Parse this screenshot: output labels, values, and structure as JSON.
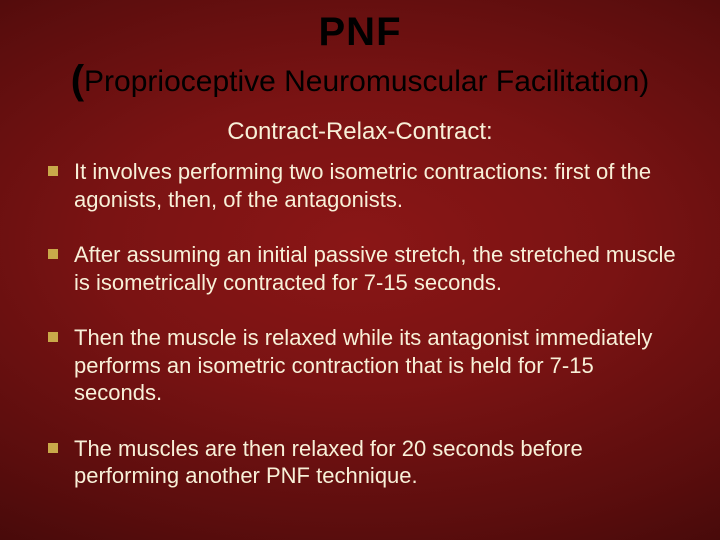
{
  "slide": {
    "background": {
      "gradient_center": "#8a1616",
      "gradient_mid": "#5a0d0d",
      "gradient_edge": "#2a0505"
    },
    "title": {
      "main": "PNF",
      "sub_open": "(",
      "sub_text": "Proprioceptive Neuromuscular Facilitation)",
      "color": "#000000",
      "main_fontsize": 40,
      "sub_fontsize": 30
    },
    "subtitle": {
      "text": "Contract-Relax-Contract:",
      "color": "#f8f0d8",
      "fontsize": 24
    },
    "bullet_style": {
      "marker_color": "#c9a94a",
      "marker_size": 10,
      "text_color": "#f8f0d8",
      "text_fontsize": 22
    },
    "bullets": [
      {
        "text": "It involves performing two isometric contractions: first of the agonists, then, of the antagonists."
      },
      {
        "text": "After assuming an initial passive stretch, the stretched muscle is isometrically contracted for 7-15 seconds."
      },
      {
        "text": "Then the muscle is relaxed while its antagonist immediately performs an isometric contraction that is held for 7-15 seconds."
      },
      {
        "text": "The muscles are then relaxed for 20 seconds before performing another PNF technique."
      }
    ]
  }
}
